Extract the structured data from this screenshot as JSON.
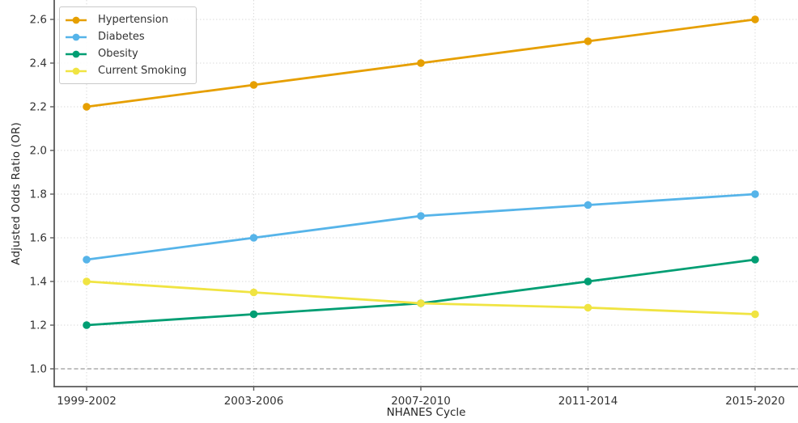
{
  "chart_data": {
    "type": "line",
    "title": "",
    "xlabel": "NHANES Cycle",
    "ylabel": "Adjusted Odds Ratio (OR)",
    "categories": [
      "1999-2002",
      "2003-2006",
      "2007-2010",
      "2011-2014",
      "2015-2020"
    ],
    "series": [
      {
        "name": "Hypertension",
        "color": "#E69F00",
        "values": [
          2.2,
          2.3,
          2.4,
          2.5,
          2.6
        ]
      },
      {
        "name": "Diabetes",
        "color": "#56B4E9",
        "values": [
          1.5,
          1.6,
          1.7,
          1.75,
          1.8
        ]
      },
      {
        "name": "Obesity",
        "color": "#009E73",
        "values": [
          1.2,
          1.25,
          1.3,
          1.4,
          1.5
        ]
      },
      {
        "name": "Current Smoking",
        "color": "#F0E442",
        "values": [
          1.4,
          1.35,
          1.3,
          1.28,
          1.25
        ]
      }
    ],
    "yticks": [
      1.0,
      1.2,
      1.4,
      1.6,
      1.8,
      2.0,
      2.2,
      2.4,
      2.6
    ],
    "ytick_labels": [
      "1.0",
      "1.2",
      "1.4",
      "1.6",
      "1.8",
      "2.0",
      "2.2",
      "2.4",
      "2.6"
    ],
    "ylim": [
      0.919,
      2.689
    ],
    "grid": true,
    "gridline_style": "dotted",
    "reference_line": {
      "y": 1.0,
      "style": "dashed",
      "color": "#9b9b9b"
    },
    "legend_position": "upper-left",
    "legend_entries": [
      "Hypertension",
      "Diabetes",
      "Obesity",
      "Current Smoking"
    ]
  },
  "colors": {
    "background": "#ffffff",
    "spine": "#5a5a5a",
    "grid": "#d9d9d9",
    "tick_text": "#333333",
    "axis_label_text": "#262626",
    "legend_border": "#c9c9c9",
    "legend_text": "#333333"
  }
}
